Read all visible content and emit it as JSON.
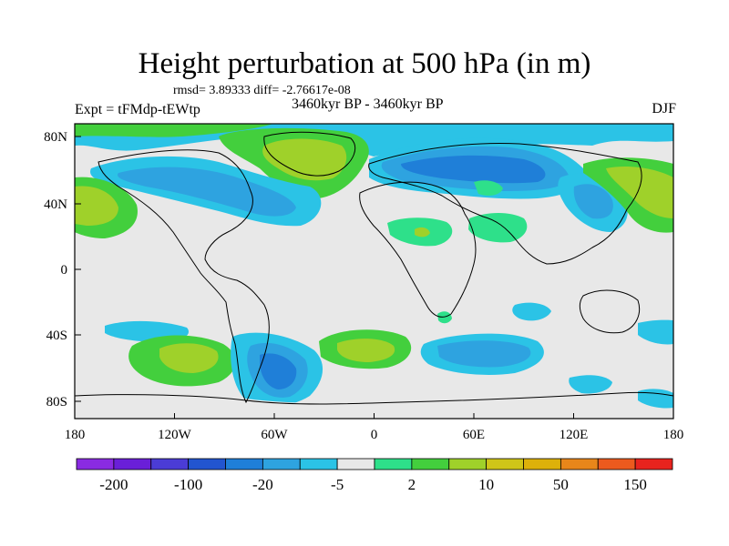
{
  "title": "Height perturbation at 500 hPa (in m)",
  "stats": "rmsd= 3.89333 diff= -2.76617e-08",
  "expt": "Expt = tFMdp-tEWtp",
  "period": "3460kyr BP - 3460kyr BP",
  "season": "DJF",
  "lat_ticks": [
    "80N",
    "40N",
    "0",
    "40S",
    "80S"
  ],
  "lon_ticks": [
    "180",
    "120W",
    "60W",
    "0",
    "60E",
    "120E",
    "180"
  ],
  "colorbar": {
    "labels": [
      "-200",
      "-100",
      "-20",
      "-5",
      "2",
      "10",
      "50",
      "150"
    ],
    "colors": [
      "#8a2be2",
      "#6a1fd8",
      "#4b3cd6",
      "#2255d0",
      "#1f7fd8",
      "#2ea3e0",
      "#2bc3e6",
      "#e8e8e8",
      "#2ee08a",
      "#43cf3d",
      "#9fd12a",
      "#cfc518",
      "#ddb10a",
      "#e8861a",
      "#ec5a1e",
      "#e8231e"
    ]
  },
  "colors": {
    "land_outline": "#000000",
    "neutral": "#e8e8e8",
    "cyan": "#2bc3e6",
    "light_blue": "#2ea3e0",
    "blue": "#1f7fd8",
    "mint": "#2ee08a",
    "green": "#43cf3d",
    "yellow_green": "#9fd12a"
  }
}
